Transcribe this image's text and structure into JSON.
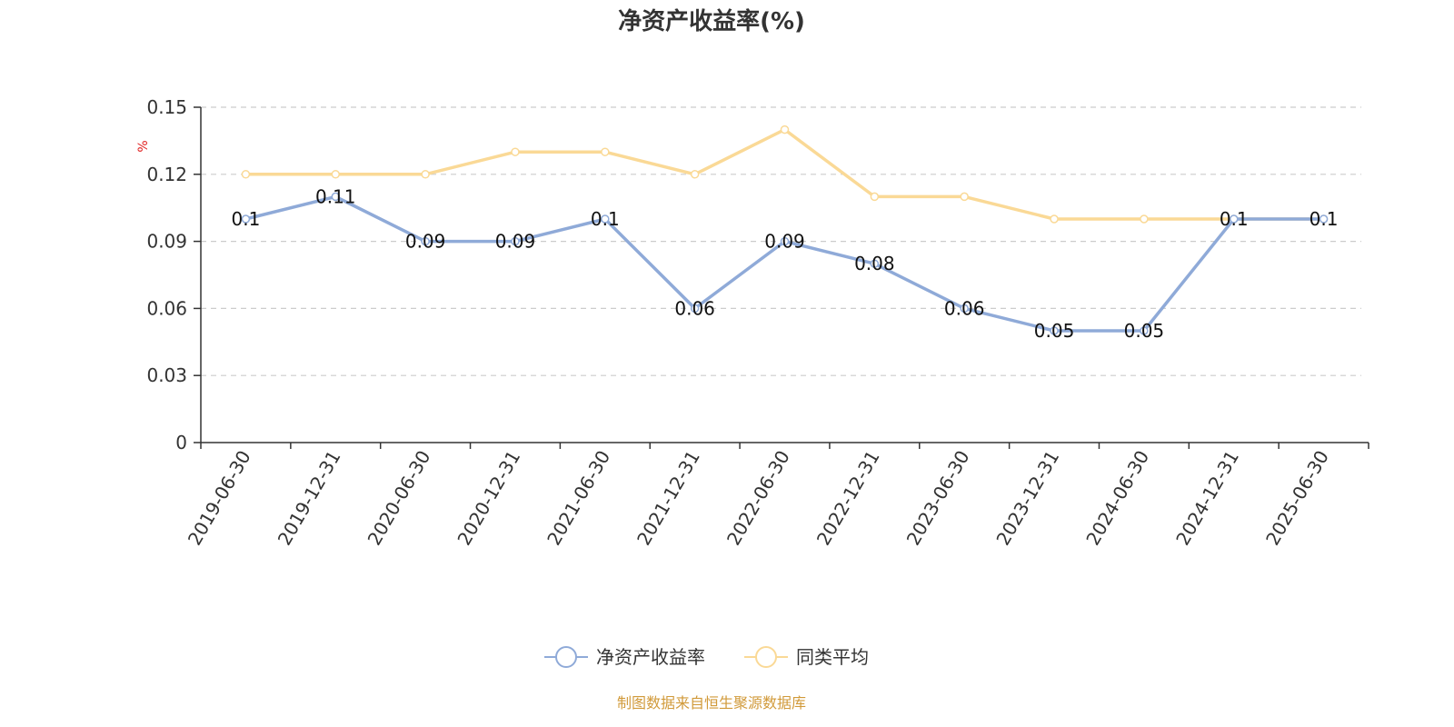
{
  "chart_data": {
    "type": "line",
    "title": "净资产收益率(%)",
    "ylabel": "%",
    "ylim": [
      0,
      0.15
    ],
    "yticks": [
      "0",
      "0.03",
      "0.06",
      "0.09",
      "0.12",
      "0.15"
    ],
    "grid": true,
    "legend_position": "bottom",
    "categories": [
      "2019-06-30",
      "2019-12-31",
      "2020-06-30",
      "2020-12-31",
      "2021-06-30",
      "2021-12-31",
      "2022-06-30",
      "2022-12-31",
      "2023-06-30",
      "2023-12-31",
      "2024-06-30",
      "2024-12-31",
      "2025-06-30"
    ],
    "series": [
      {
        "name": "净资产收益率",
        "color": "#8faad8",
        "values": [
          0.1,
          0.11,
          0.09,
          0.09,
          0.1,
          0.06,
          0.09,
          0.08,
          0.06,
          0.05,
          0.05,
          0.1,
          0.1
        ],
        "labels": [
          "0.1",
          "0.11",
          "0.09",
          "0.09",
          "0.1",
          "0.06",
          "0.09",
          "0.08",
          "0.06",
          "0.05",
          "0.05",
          "0.1",
          "0.1"
        ]
      },
      {
        "name": "同类平均",
        "color": "#fad996",
        "values": [
          0.12,
          0.12,
          0.12,
          0.13,
          0.13,
          0.12,
          0.14,
          0.11,
          0.11,
          0.1,
          0.1,
          0.1,
          0.1
        ]
      }
    ],
    "source": "制图数据来自恒生聚源数据库"
  }
}
